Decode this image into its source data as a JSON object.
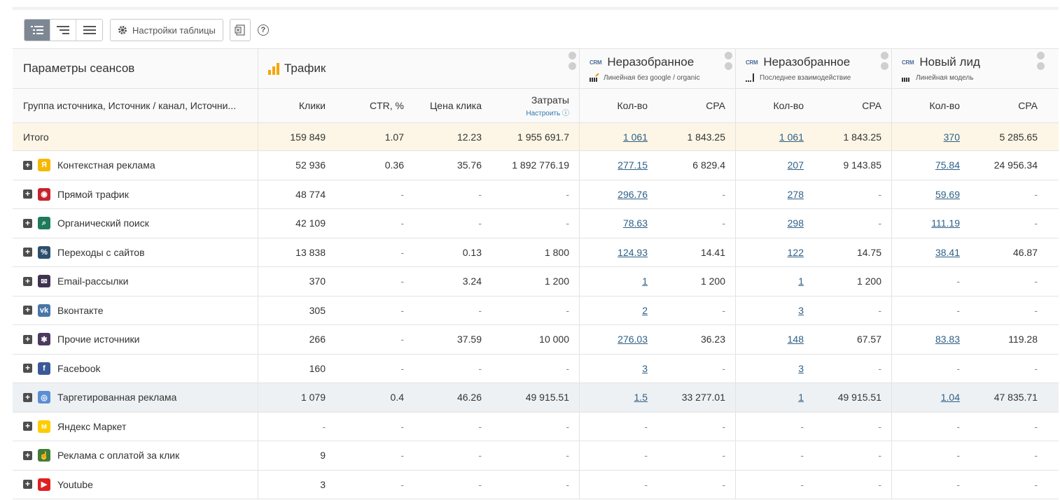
{
  "toolbar": {
    "settings_label": "Настройки таблицы",
    "help_label": "?"
  },
  "header": {
    "params_title": "Параметры сеансов",
    "traffic_title": "Трафик",
    "attr": [
      {
        "crm": "CRM",
        "name": "Неразобранное",
        "model": "Линейная без google / organic"
      },
      {
        "crm": "CRM",
        "name": "Неразобранное",
        "model": "Последнее взаимодействие"
      },
      {
        "crm": "CRM",
        "name": "Новый лид",
        "model": "Линейная модель"
      }
    ],
    "columns": {
      "group": "Группа источника, Источник / канал, Источни...",
      "clicks": "Клики",
      "ctr": "CTR, %",
      "price": "Цена клика",
      "cost": "Затраты",
      "cost_sub": "Настроить",
      "qty": "Кол-во",
      "cpa": "CPA"
    }
  },
  "total": {
    "label": "Итого",
    "clicks": "159 849",
    "ctr": "1.07",
    "price": "12.23",
    "cost": "1 955 691.7",
    "q1": "1 061",
    "cpa1": "1 843.25",
    "q2": "1 061",
    "cpa2": "1 843.25",
    "q3": "370",
    "cpa3": "5 285.65"
  },
  "rows": [
    {
      "name": "Контекстная реклама",
      "icon": "yandex-direct-icon",
      "color": "#f5b800",
      "glyph": "Я",
      "clicks": "52 936",
      "ctr": "0.36",
      "price": "35.76",
      "cost": "1 892 776.19",
      "q1": "277.15",
      "cpa1": "6 829.4",
      "q2": "207",
      "cpa2": "9 143.85",
      "q3": "75.84",
      "cpa3": "24 956.34"
    },
    {
      "name": "Прямой трафик",
      "icon": "direct-traffic-icon",
      "color": "#c8232c",
      "glyph": "◉",
      "clicks": "48 774",
      "ctr": "-",
      "price": "-",
      "cost": "-",
      "q1": "296.76",
      "cpa1": "-",
      "q2": "278",
      "cpa2": "-",
      "q3": "59.69",
      "cpa3": "-"
    },
    {
      "name": "Органический поиск",
      "icon": "organic-search-icon",
      "color": "#1f7a5c",
      "glyph": "⌕",
      "clicks": "42 109",
      "ctr": "-",
      "price": "-",
      "cost": "-",
      "q1": "78.63",
      "cpa1": "-",
      "q2": "298",
      "cpa2": "-",
      "q3": "111.19",
      "cpa3": "-"
    },
    {
      "name": "Переходы с сайтов",
      "icon": "referral-link-icon",
      "color": "#2e4f6e",
      "glyph": "%",
      "clicks": "13 838",
      "ctr": "-",
      "price": "0.13",
      "cost": "1 800",
      "q1": "124.93",
      "cpa1": "14.41",
      "q2": "122",
      "cpa2": "14.75",
      "q3": "38.41",
      "cpa3": "46.87"
    },
    {
      "name": "Email-рассылки",
      "icon": "email-icon",
      "color": "#3f3350",
      "glyph": "✉",
      "clicks": "370",
      "ctr": "-",
      "price": "3.24",
      "cost": "1 200",
      "q1": "1",
      "cpa1": "1 200",
      "q2": "1",
      "cpa2": "1 200",
      "q3": "-",
      "cpa3": "-"
    },
    {
      "name": "Вконтакте",
      "icon": "vk-icon",
      "color": "#4a76a8",
      "glyph": "vk",
      "clicks": "305",
      "ctr": "-",
      "price": "-",
      "cost": "-",
      "q1": "2",
      "cpa1": "-",
      "q2": "3",
      "cpa2": "-",
      "q3": "-",
      "cpa3": "-"
    },
    {
      "name": "Прочие источники",
      "icon": "other-sources-icon",
      "color": "#4b3a5e",
      "glyph": "✱",
      "clicks": "266",
      "ctr": "-",
      "price": "37.59",
      "cost": "10 000",
      "q1": "276.03",
      "cpa1": "36.23",
      "q2": "148",
      "cpa2": "67.57",
      "q3": "83.83",
      "cpa3": "119.28"
    },
    {
      "name": "Facebook",
      "icon": "facebook-icon",
      "color": "#3b5998",
      "glyph": "f",
      "clicks": "160",
      "ctr": "-",
      "price": "-",
      "cost": "-",
      "q1": "3",
      "cpa1": "-",
      "q2": "3",
      "cpa2": "-",
      "q3": "-",
      "cpa3": "-"
    },
    {
      "name": "Таргетированная реклама",
      "icon": "targeted-ads-icon",
      "color": "#5a8fd6",
      "glyph": "◎",
      "clicks": "1 079",
      "ctr": "0.4",
      "price": "46.26",
      "cost": "49 915.51",
      "q1": "1.5",
      "cpa1": "33 277.01",
      "q2": "1",
      "cpa2": "49 915.51",
      "q3": "1.04",
      "cpa3": "47 835.71"
    },
    {
      "name": "Яндекс Маркет",
      "icon": "yandex-market-icon",
      "color": "#ffcc00",
      "glyph": "м",
      "clicks": "-",
      "ctr": "-",
      "price": "-",
      "cost": "-",
      "q1": "-",
      "cpa1": "-",
      "q2": "-",
      "cpa2": "-",
      "q3": "-",
      "cpa3": "-"
    },
    {
      "name": "Реклама с оплатой за клик",
      "icon": "pay-per-click-icon",
      "color": "#3f7d3a",
      "glyph": "☝",
      "clicks": "9",
      "ctr": "-",
      "price": "-",
      "cost": "-",
      "q1": "-",
      "cpa1": "-",
      "q2": "-",
      "cpa2": "-",
      "q3": "-",
      "cpa3": "-"
    },
    {
      "name": "Youtube",
      "icon": "youtube-icon",
      "color": "#e02020",
      "glyph": "▶",
      "clicks": "3",
      "ctr": "-",
      "price": "-",
      "cost": "-",
      "q1": "-",
      "cpa1": "-",
      "q2": "-",
      "cpa2": "-",
      "q3": "-",
      "cpa3": "-"
    }
  ]
}
